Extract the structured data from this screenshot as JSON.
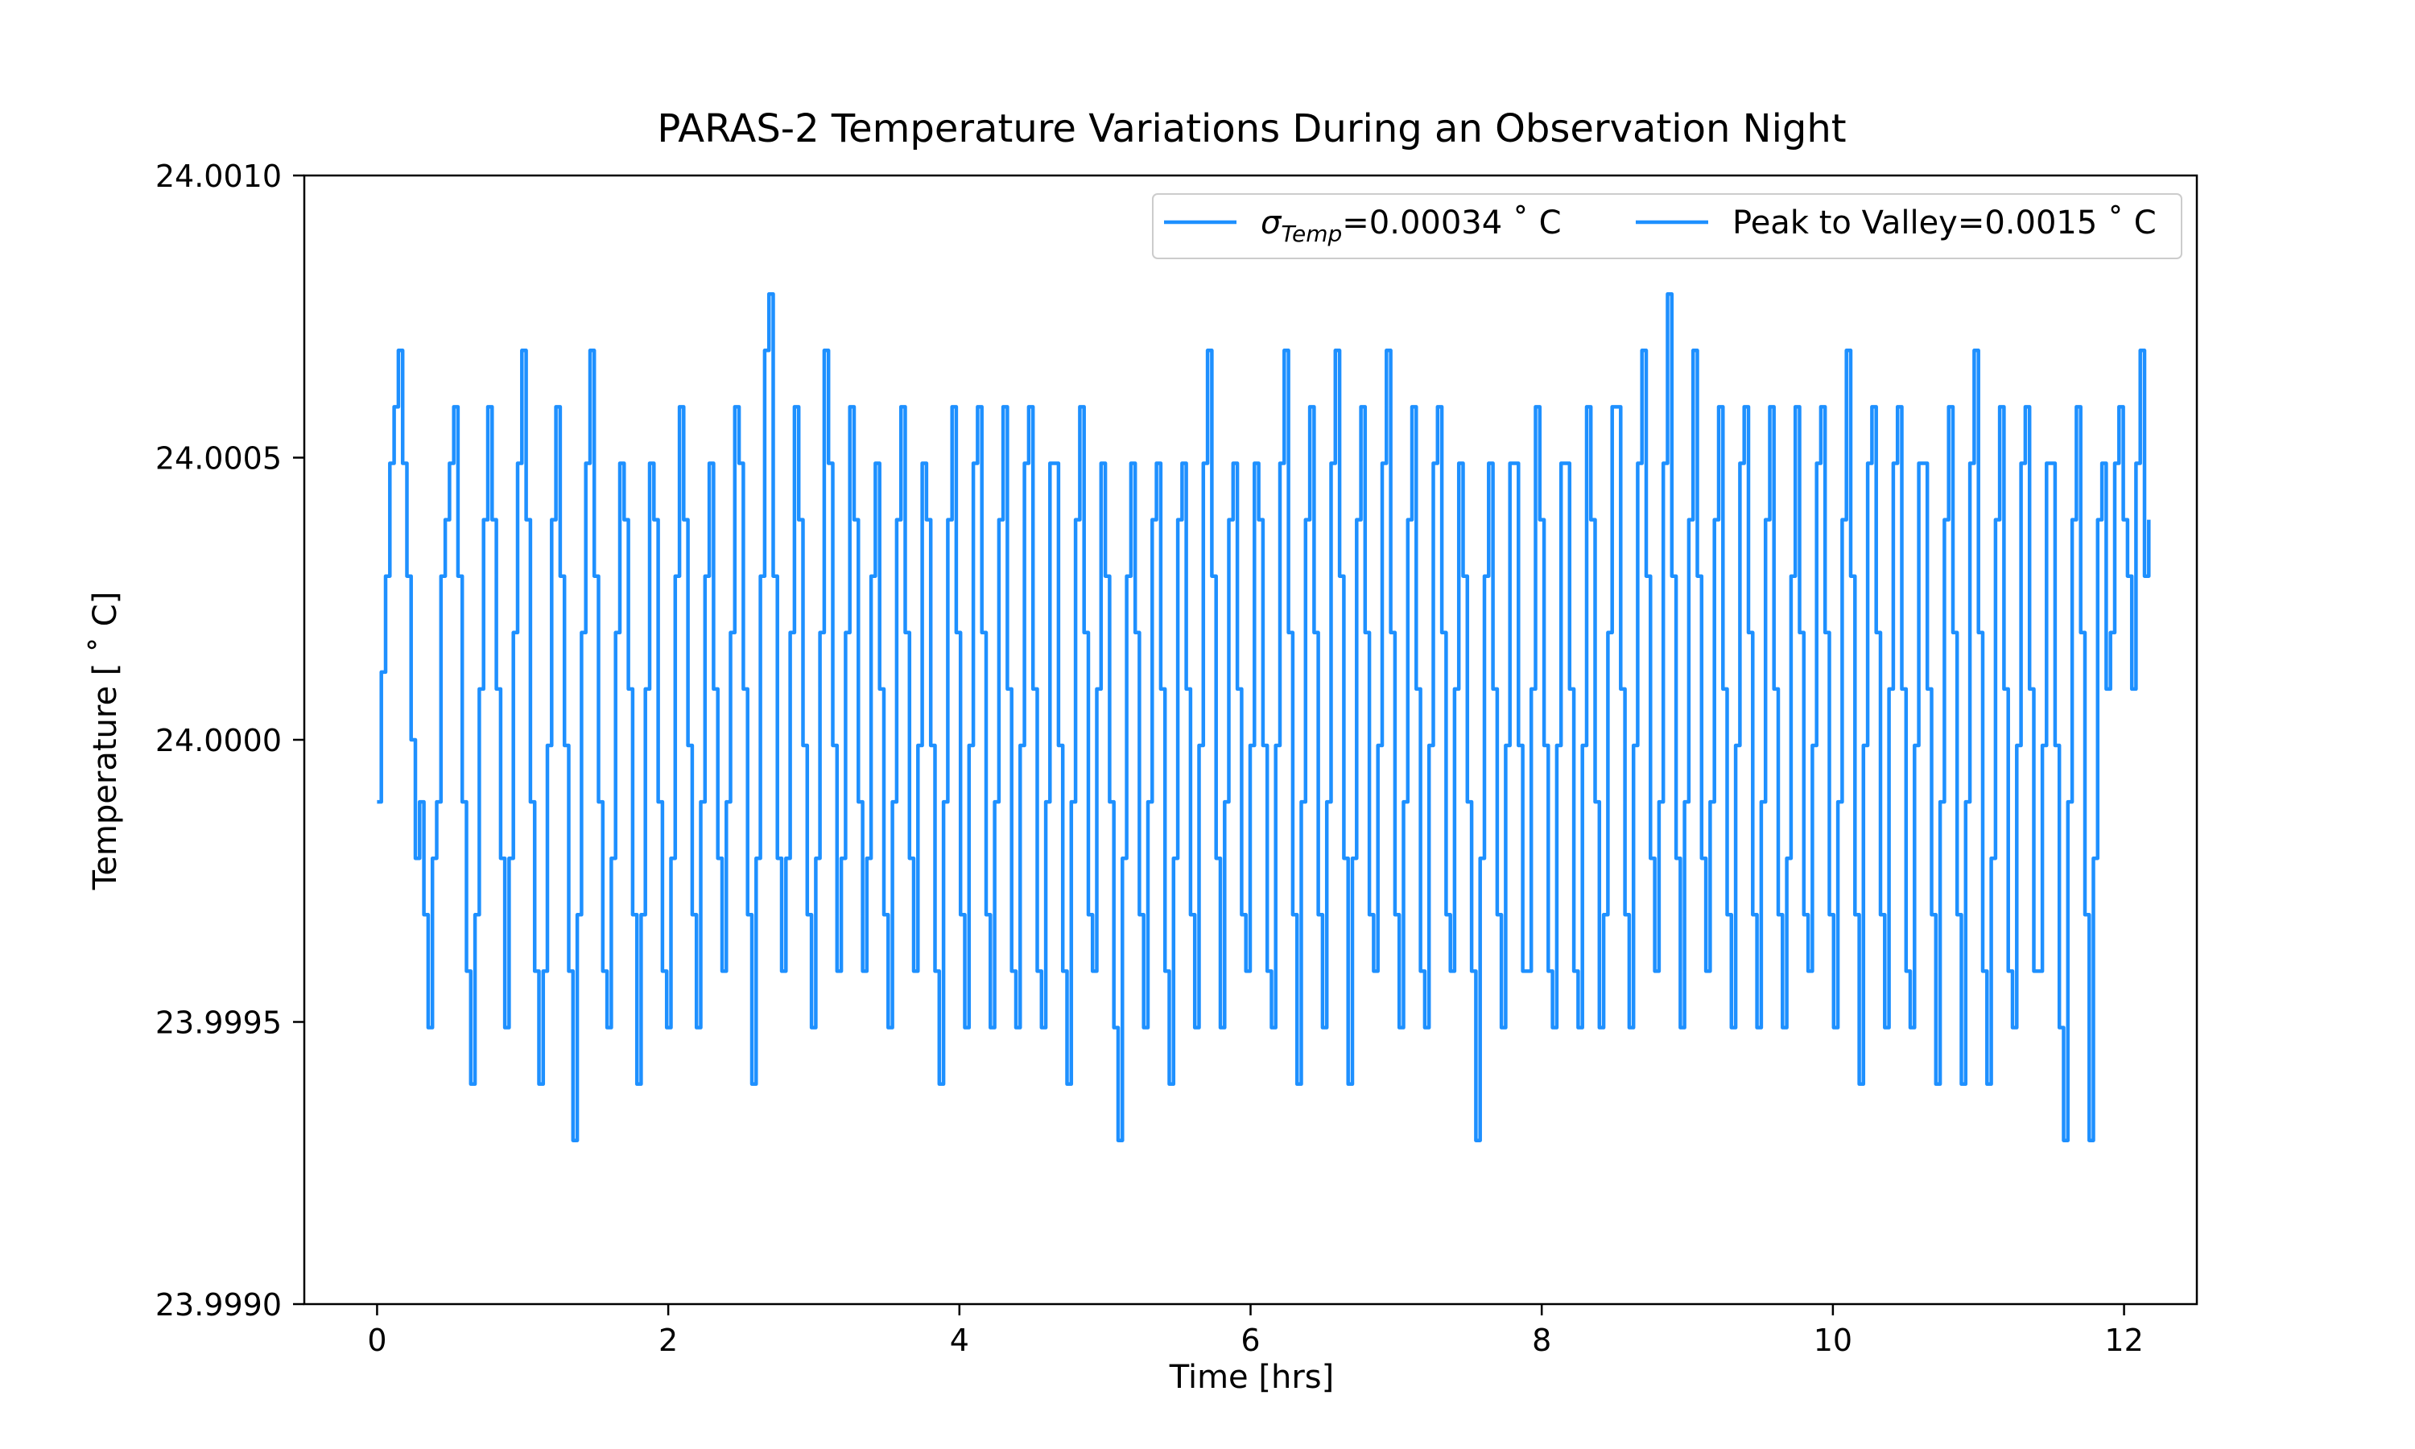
{
  "chart_data": {
    "type": "line",
    "title": "PARAS-2 Temperature Variations During an Observation Night",
    "xlabel": "Time [hrs]",
    "ylabel": "Temperature [$^\\circ$C]",
    "ylabel_text": "Temperature [ ˚ C]",
    "xlim": [
      -0.5,
      12.5
    ],
    "ylim": [
      23.999,
      24.001
    ],
    "xticks": [
      0,
      2,
      4,
      6,
      8,
      10,
      12
    ],
    "xtick_labels": [
      "0",
      "2",
      "4",
      "6",
      "8",
      "10",
      "12"
    ],
    "yticks": [
      23.999,
      23.9995,
      24.0,
      24.0005,
      24.001
    ],
    "ytick_labels": [
      "23.9990",
      "23.9995",
      "24.0000",
      "24.0005",
      "24.0010"
    ],
    "grid": false,
    "legend_position": "upper-right",
    "legend": [
      {
        "label_main": "σ",
        "label_sub": "Temp",
        "label_rest": "=0.00034 ˚ C",
        "color": "#1e90ff"
      },
      {
        "label_main": "Peak to Valley=0.0015 ˚ C",
        "label_sub": "",
        "label_rest": "",
        "color": "#1e90ff"
      }
    ],
    "series": [
      {
        "color": "#1e90ff",
        "x_start": 0.0,
        "x_end": 12.17,
        "y": [
          23.99989,
          24.00012,
          24.00029,
          24.00049,
          24.00059,
          24.00069,
          24.00049,
          24.00029,
          24.0,
          23.99979,
          23.99989,
          23.99969,
          23.99949,
          23.99979,
          23.99989,
          24.00029,
          24.00039,
          24.00049,
          24.00059,
          24.00029,
          23.99989,
          23.99959,
          23.99939,
          23.99969,
          24.00009,
          24.00039,
          24.00059,
          24.00039,
          24.00009,
          23.99979,
          23.99949,
          23.99979,
          24.00019,
          24.00049,
          24.00069,
          24.00039,
          23.99989,
          23.99959,
          23.99939,
          23.99959,
          23.99999,
          24.00039,
          24.00059,
          24.00029,
          23.99999,
          23.99959,
          23.99929,
          23.99969,
          24.00019,
          24.00049,
          24.00069,
          24.00029,
          23.99989,
          23.99959,
          23.99949,
          23.99979,
          24.00019,
          24.00049,
          24.00039,
          24.00009,
          23.99969,
          23.99939,
          23.99969,
          24.00009,
          24.00049,
          24.00039,
          23.99989,
          23.99959,
          23.99949,
          23.99979,
          24.00029,
          24.00059,
          24.00039,
          23.99999,
          23.99969,
          23.99949,
          23.99989,
          24.00029,
          24.00049,
          24.00009,
          23.99979,
          23.99959,
          23.99989,
          24.00019,
          24.00059,
          24.00049,
          24.00009,
          23.99969,
          23.99939,
          23.99979,
          24.00029,
          24.00069,
          24.00079,
          24.00029,
          23.99979,
          23.99959,
          23.99979,
          24.00019,
          24.00059,
          24.00039,
          23.99999,
          23.99969,
          23.99949,
          23.99979,
          24.00019,
          24.00069,
          24.00049,
          23.99999,
          23.99959,
          23.99979,
          24.00019,
          24.00059,
          24.00039,
          23.99989,
          23.99959,
          23.99979,
          24.00029,
          24.00049,
          24.00009,
          23.99969,
          23.99949,
          23.99989,
          24.00039,
          24.00059,
          24.00019,
          23.99979,
          23.99959,
          23.99999,
          24.00049,
          24.00039,
          23.99999,
          23.99959,
          23.99939,
          23.99989,
          24.00039,
          24.00059,
          24.00019,
          23.99969,
          23.99949,
          23.99999,
          24.00049,
          24.00059,
          24.00019,
          23.99969,
          23.99949,
          23.99989,
          24.00039,
          24.00059,
          24.00009,
          23.99959,
          23.99949,
          23.99999,
          24.00049,
          24.00059,
          24.00009,
          23.99959,
          23.99949,
          23.99989,
          24.00049,
          24.00049,
          23.99999,
          23.99959,
          23.99939,
          23.99989,
          24.00039,
          24.00059,
          24.00019,
          23.99969,
          23.99959,
          24.00009,
          24.00049,
          24.00029,
          23.99989,
          23.99949,
          23.99929,
          23.99979,
          24.00029,
          24.00049,
          24.00019,
          23.99969,
          23.99949,
          23.99989,
          24.00039,
          24.00049,
          24.00009,
          23.99959,
          23.99939,
          23.99979,
          24.00039,
          24.00049,
          24.00009,
          23.99969,
          23.99949,
          23.99999,
          24.00049,
          24.00069,
          24.00029,
          23.99979,
          23.99949,
          23.99989,
          24.00039,
          24.00049,
          24.00009,
          23.99969,
          23.99959,
          23.99999,
          24.00049,
          24.00039,
          23.99999,
          23.99959,
          23.99949,
          23.99999,
          24.00049,
          24.00069,
          24.00019,
          23.99969,
          23.99939,
          23.99989,
          24.00039,
          24.00059,
          24.00019,
          23.99969,
          23.99949,
          23.99989,
          24.00049,
          24.00069,
          24.00029,
          23.99979,
          23.99939,
          23.99979,
          24.00039,
          24.00059,
          24.00019,
          23.99969,
          23.99959,
          23.99999,
          24.00049,
          24.00069,
          24.00019,
          23.99969,
          23.99949,
          23.99989,
          24.00039,
          24.00059,
          24.00009,
          23.99959,
          23.99949,
          23.99999,
          24.00049,
          24.00059,
          24.00019,
          23.99969,
          23.99959,
          24.00009,
          24.00049,
          24.00029,
          23.99989,
          23.99959,
          23.99929,
          23.99979,
          24.00029,
          24.00049,
          24.00009,
          23.99969,
          23.99949,
          23.99999,
          24.00049,
          24.00049,
          23.99999,
          23.99959,
          23.99959,
          24.00009,
          24.00059,
          24.00039,
          23.99999,
          23.99959,
          23.99949,
          23.99999,
          24.00049,
          24.00049,
          24.00009,
          23.99959,
          23.99949,
          23.99999,
          24.00059,
          24.00039,
          23.99989,
          23.99949,
          23.99969,
          24.00019,
          24.00059,
          24.00059,
          24.00009,
          23.99969,
          23.99949,
          23.99999,
          24.00049,
          24.00069,
          24.00029,
          23.99979,
          23.99959,
          23.99989,
          24.00049,
          24.00079,
          24.00029,
          23.99979,
          23.99949,
          23.99989,
          24.00039,
          24.00069,
          24.00029,
          23.99979,
          23.99959,
          23.99989,
          24.00039,
          24.00059,
          24.00009,
          23.99969,
          23.99949,
          23.99999,
          24.00049,
          24.00059,
          24.00019,
          23.99969,
          23.99949,
          23.99989,
          24.00039,
          24.00059,
          24.00009,
          23.99969,
          23.99949,
          23.99979,
          24.00029,
          24.00059,
          24.00019,
          23.99969,
          23.99959,
          23.99999,
          24.00049,
          24.00059,
          24.00019,
          23.99969,
          23.99949,
          23.99989,
          24.00039,
          24.00069,
          24.00029,
          23.99969,
          23.99939,
          23.99999,
          24.00049,
          24.00059,
          24.00019,
          23.99969,
          23.99949,
          24.00009,
          24.00049,
          24.00059,
          24.00009,
          23.99959,
          23.99949,
          23.99999,
          24.00049,
          24.00049,
          24.00009,
          23.99969,
          23.99939,
          23.99989,
          24.00039,
          24.00059,
          24.00019,
          23.99969,
          23.99939,
          23.99989,
          24.00049,
          24.00069,
          24.00019,
          23.99959,
          23.99939,
          23.99979,
          24.00039,
          24.00059,
          24.00009,
          23.99959,
          23.99949,
          23.99999,
          24.00049,
          24.00059,
          24.00009,
          23.99959,
          23.99959,
          23.99999,
          24.00049,
          24.00049,
          23.99999,
          23.99949,
          23.99929,
          23.99989,
          24.00039,
          24.00059,
          24.00019,
          23.99969,
          23.99929,
          23.99979,
          24.00039,
          24.00049,
          24.00009,
          24.00019,
          24.00049,
          24.00059,
          24.00039,
          24.00029,
          24.00009,
          24.00049,
          24.00069,
          24.00029,
          24.00039
        ]
      }
    ]
  }
}
